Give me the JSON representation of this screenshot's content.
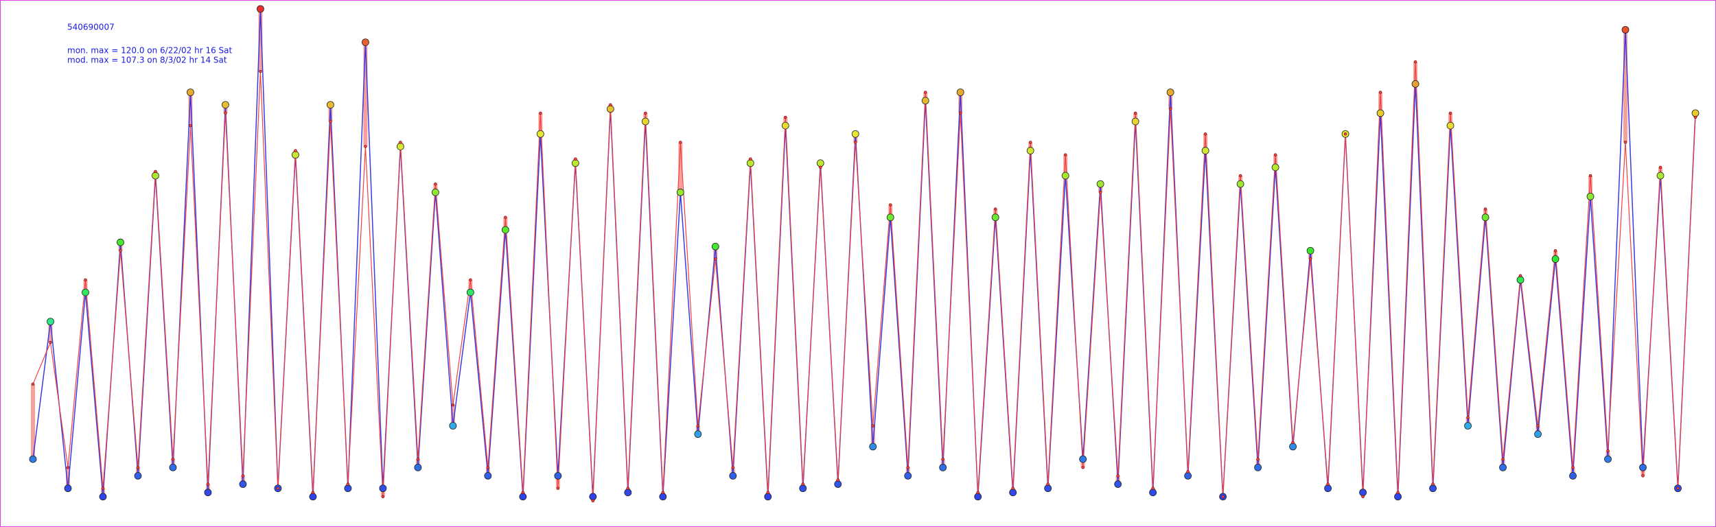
{
  "chart_data": {
    "type": "line",
    "title": "540690007",
    "annotations": [
      "mon. max =  120.0 on 6/22/02 hr 16 Sat",
      "mod. max =  107.3 on 8/3/02 hr 14 Sat"
    ],
    "series": [
      {
        "color": "#3a3ae0",
        "values": [
          12,
          45,
          5,
          52,
          3,
          64,
          8,
          80,
          10,
          100,
          4,
          97,
          6,
          120,
          5,
          85,
          3,
          97,
          5,
          112,
          5,
          87,
          10,
          76,
          20,
          52,
          8,
          67,
          3,
          90,
          8,
          83,
          3,
          96,
          4,
          93,
          3,
          76,
          18,
          63,
          8,
          83,
          3,
          92,
          5,
          83,
          6,
          90,
          15,
          70,
          8,
          98,
          10,
          100,
          3,
          70,
          4,
          86,
          5,
          80,
          12,
          78,
          6,
          93,
          4,
          100,
          8,
          86,
          3,
          78,
          10,
          82,
          15,
          62,
          5,
          90,
          4,
          95,
          3,
          102,
          5,
          92,
          20,
          70,
          10,
          55,
          18,
          60,
          8,
          75,
          12,
          115,
          10,
          80,
          5,
          95
        ]
      },
      {
        "color": "#f04040",
        "values": [
          30,
          40,
          10,
          55,
          5,
          62,
          10,
          81,
          12,
          92,
          6,
          95,
          8,
          105,
          5,
          86,
          4,
          93,
          6,
          87,
          3,
          88,
          12,
          78,
          25,
          55,
          10,
          70,
          4,
          95,
          5,
          84,
          2,
          97,
          5,
          95,
          4,
          88,
          20,
          60,
          10,
          84,
          4,
          94,
          6,
          82,
          7,
          88,
          20,
          73,
          10,
          100,
          12,
          95,
          4,
          72,
          5,
          88,
          6,
          85,
          10,
          76,
          8,
          95,
          5,
          96,
          9,
          90,
          3,
          80,
          12,
          85,
          16,
          60,
          6,
          90,
          3,
          100,
          4,
          107.3,
          6,
          95,
          22,
          72,
          12,
          56,
          20,
          62,
          10,
          80,
          14,
          88,
          8,
          82,
          5,
          94
        ]
      }
    ]
  }
}
